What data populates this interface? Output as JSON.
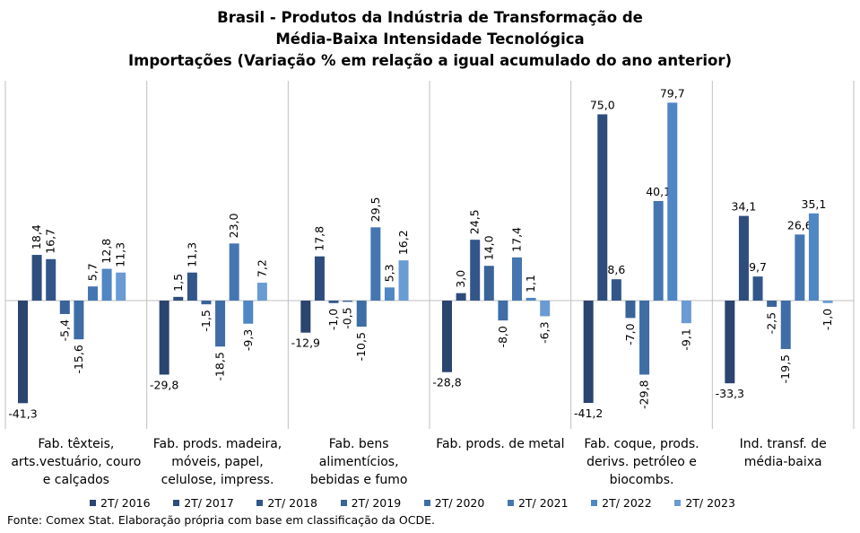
{
  "chart_data": {
    "type": "bar",
    "title_lines": [
      "Brasil - Produtos da Indústria de Transformação de",
      "Média-Baixa Intensidade Tecnológica",
      "Importações (Variação % em relação a igual acumulado do ano anterior)"
    ],
    "categories": [
      [
        "Fab. têxteis,",
        "arts.vestuário, couro",
        "e calçados"
      ],
      [
        "Fab. prods. madeira,",
        "móveis, papel,",
        "celulose, impress."
      ],
      [
        "Fab. bens",
        "alimentícios,",
        "bebidas e fumo"
      ],
      [
        "Fab. prods. de metal"
      ],
      [
        "Fab. coque, prods.",
        "derivs. petróleo e",
        "biocombs."
      ],
      [
        "Ind. transf. de",
        "média-baixa"
      ]
    ],
    "series": [
      {
        "name": "2T/ 2016",
        "color": "#2b4470",
        "values": [
          -41.3,
          -29.8,
          -12.9,
          -28.8,
          -41.2,
          -33.3
        ],
        "labels": [
          "-41,3",
          "-29,8",
          "-12,9",
          "-28,8",
          "-41,2",
          "-33,3"
        ]
      },
      {
        "name": "2T/ 2017",
        "color": "#2e4d7d",
        "values": [
          18.4,
          1.5,
          17.8,
          3.0,
          75.0,
          34.1
        ],
        "labels": [
          "18,4",
          "1,5",
          "17,8",
          "3,0",
          "75,0",
          "34,1"
        ]
      },
      {
        "name": "2T/ 2018",
        "color": "#32568a",
        "values": [
          16.7,
          11.3,
          -1.0,
          24.5,
          8.6,
          9.7
        ],
        "labels": [
          "16,7",
          "11,3",
          "-1,0",
          "24,5",
          "8,6",
          "9,7"
        ]
      },
      {
        "name": "2T/ 2019",
        "color": "#3a6399",
        "values": [
          -5.4,
          -1.5,
          -0.5,
          14.0,
          -7.0,
          -2.5
        ],
        "labels": [
          "-5,4",
          "-1,5",
          "-0,5",
          "14,0",
          "-7,0",
          "-2,5"
        ]
      },
      {
        "name": "2T/ 2020",
        "color": "#3f6da6",
        "values": [
          -15.6,
          -18.5,
          -10.5,
          -8.0,
          -29.8,
          -19.5
        ],
        "labels": [
          "-15,6",
          "-18,5",
          "-10,5",
          "-8,0",
          "-29,8",
          "-19,5"
        ]
      },
      {
        "name": "2T/ 2021",
        "color": "#4576b2",
        "values": [
          5.7,
          23.0,
          29.5,
          17.4,
          40.1,
          26.6
        ],
        "labels": [
          "5,7",
          "23,0",
          "29,5",
          "17,4",
          "40,1",
          "26,6"
        ]
      },
      {
        "name": "2T/ 2022",
        "color": "#4f86c4",
        "values": [
          12.8,
          -9.3,
          5.3,
          1.1,
          79.7,
          35.1
        ],
        "labels": [
          "12,8",
          "-9,3",
          "5,3",
          "1,1",
          "79,7",
          "35,1"
        ]
      },
      {
        "name": "2T/ 2023",
        "color": "#6a9bd2",
        "values": [
          11.3,
          7.2,
          16.2,
          -6.3,
          -9.1,
          -1.0
        ],
        "labels": [
          "11,3",
          "7,2",
          "16,2",
          "-6,3",
          "-9,1",
          "-1,0"
        ]
      }
    ],
    "ylim": [
      -45,
      80
    ],
    "grid": false,
    "legend_position": "bottom"
  },
  "footer": {
    "source": "Fonte: Comex Stat. Elaboração própria com base em classificação da OCDE."
  }
}
